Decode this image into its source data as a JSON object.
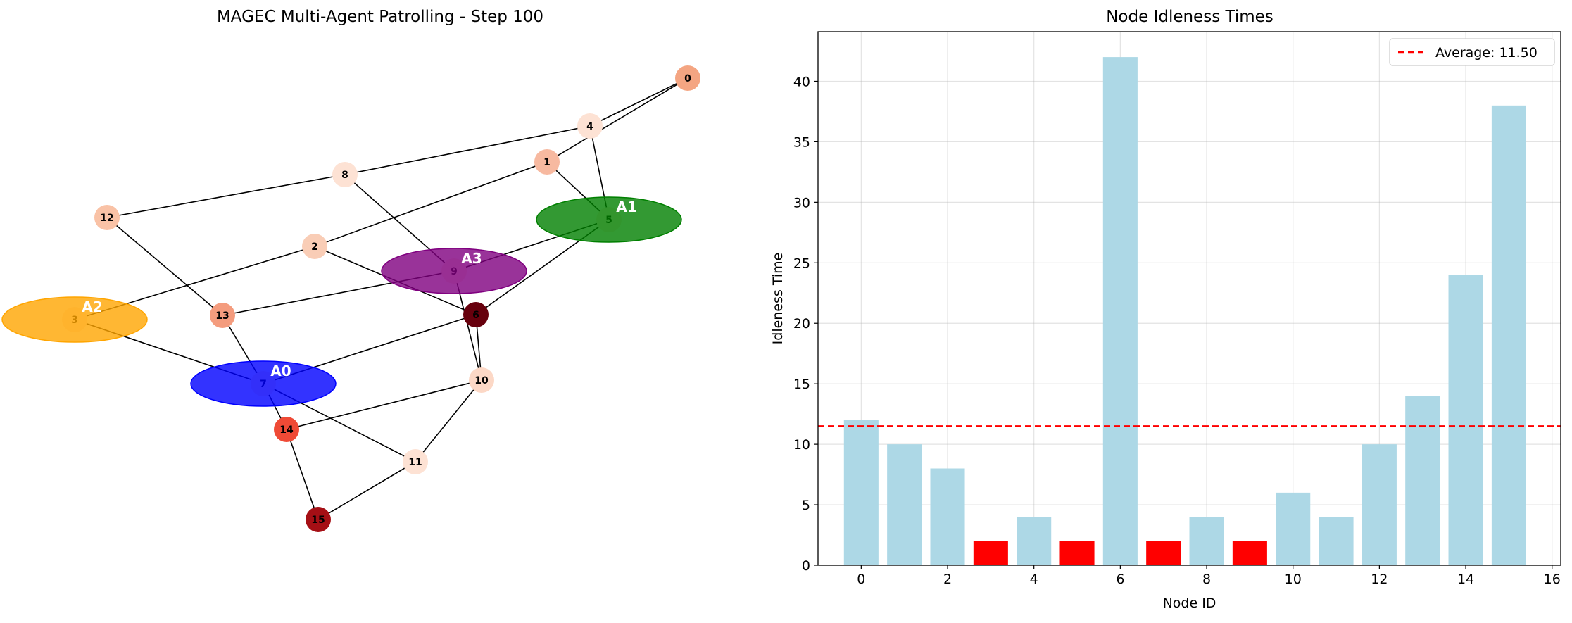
{
  "chart_data": [
    {
      "type": "network",
      "title": "MAGEC Multi-Agent Patrolling - Step 100",
      "nodes": [
        {
          "id": "0",
          "idleness": 12,
          "color": "#f4a582"
        },
        {
          "id": "1",
          "idleness": 10,
          "color": "#f7b9a0"
        },
        {
          "id": "2",
          "idleness": 8,
          "color": "#f9cdb6"
        },
        {
          "id": "3",
          "idleness": 2,
          "color": "#fde9df"
        },
        {
          "id": "4",
          "idleness": 4,
          "color": "#fde2d4"
        },
        {
          "id": "5",
          "idleness": 2,
          "color": "#fde9df"
        },
        {
          "id": "6",
          "idleness": 42,
          "color": "#67000d"
        },
        {
          "id": "7",
          "idleness": 2,
          "color": "#fde9df"
        },
        {
          "id": "8",
          "idleness": 4,
          "color": "#fde2d4"
        },
        {
          "id": "9",
          "idleness": 2,
          "color": "#fde9df"
        },
        {
          "id": "10",
          "idleness": 6,
          "color": "#fcd8c6"
        },
        {
          "id": "11",
          "idleness": 4,
          "color": "#fde2d4"
        },
        {
          "id": "12",
          "idleness": 10,
          "color": "#f9c2a6"
        },
        {
          "id": "13",
          "idleness": 14,
          "color": "#f49c7e"
        },
        {
          "id": "14",
          "idleness": 24,
          "color": "#ef4a36"
        },
        {
          "id": "15",
          "idleness": 38,
          "color": "#a50f15"
        }
      ],
      "edges": [
        [
          "0",
          "4"
        ],
        [
          "0",
          "1"
        ],
        [
          "4",
          "5"
        ],
        [
          "4",
          "8"
        ],
        [
          "1",
          "5"
        ],
        [
          "1",
          "2"
        ],
        [
          "8",
          "12"
        ],
        [
          "8",
          "9"
        ],
        [
          "12",
          "13"
        ],
        [
          "2",
          "3"
        ],
        [
          "2",
          "6"
        ],
        [
          "5",
          "9"
        ],
        [
          "5",
          "6"
        ],
        [
          "9",
          "13"
        ],
        [
          "9",
          "10"
        ],
        [
          "6",
          "10"
        ],
        [
          "6",
          "7"
        ],
        [
          "3",
          "7"
        ],
        [
          "13",
          "7"
        ],
        [
          "7",
          "14"
        ],
        [
          "7",
          "11"
        ],
        [
          "10",
          "14"
        ],
        [
          "10",
          "11"
        ],
        [
          "14",
          "15"
        ],
        [
          "11",
          "15"
        ]
      ],
      "agents": [
        {
          "label": "A0",
          "node": "7",
          "color": "#0000ff"
        },
        {
          "label": "A1",
          "node": "5",
          "color": "#008000"
        },
        {
          "label": "A2",
          "node": "3",
          "color": "#ffa500"
        },
        {
          "label": "A3",
          "node": "9",
          "color": "#800080"
        }
      ]
    },
    {
      "type": "bar",
      "title": "Node Idleness Times",
      "xlabel": "Node ID",
      "ylabel": "Idleness Time",
      "categories": [
        0,
        1,
        2,
        3,
        4,
        5,
        6,
        7,
        8,
        9,
        10,
        11,
        12,
        13,
        14,
        15
      ],
      "values": [
        12,
        10,
        8,
        2,
        4,
        2,
        42,
        2,
        4,
        2,
        6,
        4,
        10,
        14,
        24,
        38
      ],
      "bar_colors": [
        "#add8e6",
        "#add8e6",
        "#add8e6",
        "#ff0000",
        "#add8e6",
        "#ff0000",
        "#add8e6",
        "#ff0000",
        "#add8e6",
        "#ff0000",
        "#add8e6",
        "#add8e6",
        "#add8e6",
        "#add8e6",
        "#add8e6",
        "#add8e6"
      ],
      "xlim": [
        -1,
        16.2
      ],
      "ylim": [
        0,
        44.1
      ],
      "xticks": [
        0,
        2,
        4,
        6,
        8,
        10,
        12,
        14,
        16
      ],
      "yticks": [
        0,
        5,
        10,
        15,
        20,
        25,
        30,
        35,
        40
      ],
      "average": 11.5,
      "legend": {
        "label": "Average: 11.50",
        "placement": "top-right",
        "color": "#ff0000"
      },
      "grid": true
    }
  ]
}
